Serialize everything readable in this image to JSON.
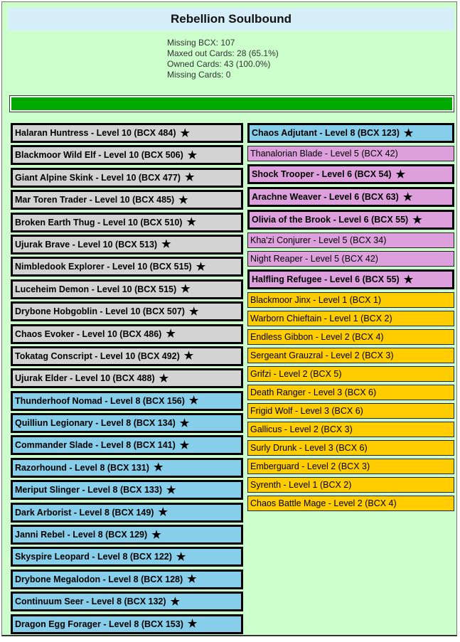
{
  "title": "Rebellion Soulbound",
  "stats": [
    "Missing BCX: 107",
    "Maxed out Cards: 28 (65.1%)",
    "Owned Cards: 43 (100.0%)",
    "Missing Cards: 0"
  ],
  "progress": {
    "fraction": 1.0,
    "color": "#00aa00"
  },
  "colors": {
    "common": "#d3d3d3",
    "rare": "#87ceeb",
    "epic": "#dda0dd",
    "legendary": "#ffcc00",
    "panel": "#ccffcc"
  },
  "left_cards": [
    {
      "label": "Halaran Huntress - Level 10 (BCX 484)",
      "rarity": "common",
      "maxed": true
    },
    {
      "label": "Blackmoor Wild Elf - Level 10 (BCX 506)",
      "rarity": "common",
      "maxed": true
    },
    {
      "label": "Giant Alpine Skink - Level 10 (BCX 477)",
      "rarity": "common",
      "maxed": true
    },
    {
      "label": "Mar Toren Trader - Level 10 (BCX 485)",
      "rarity": "common",
      "maxed": true
    },
    {
      "label": "Broken Earth Thug - Level 10 (BCX 510)",
      "rarity": "common",
      "maxed": true
    },
    {
      "label": "Ujurak Brave - Level 10 (BCX 513)",
      "rarity": "common",
      "maxed": true
    },
    {
      "label": "Nimbledook Explorer - Level 10 (BCX 515)",
      "rarity": "common",
      "maxed": true
    },
    {
      "label": "Luceheim Demon - Level 10 (BCX 515)",
      "rarity": "common",
      "maxed": true
    },
    {
      "label": "Drybone Hobgoblin - Level 10 (BCX 507)",
      "rarity": "common",
      "maxed": true
    },
    {
      "label": "Chaos Evoker - Level 10 (BCX 486)",
      "rarity": "common",
      "maxed": true
    },
    {
      "label": "Tokatag Conscript - Level 10 (BCX 492)",
      "rarity": "common",
      "maxed": true
    },
    {
      "label": "Ujurak Elder - Level 10 (BCX 488)",
      "rarity": "common",
      "maxed": true
    },
    {
      "label": "Thunderhoof Nomad - Level 8 (BCX 156)",
      "rarity": "rare",
      "maxed": true
    },
    {
      "label": "Quilliun Legionary - Level 8 (BCX 134)",
      "rarity": "rare",
      "maxed": true
    },
    {
      "label": "Commander Slade - Level 8 (BCX 141)",
      "rarity": "rare",
      "maxed": true
    },
    {
      "label": "Razorhound - Level 8 (BCX 131)",
      "rarity": "rare",
      "maxed": true
    },
    {
      "label": "Meriput Slinger - Level 8 (BCX 133)",
      "rarity": "rare",
      "maxed": true
    },
    {
      "label": "Dark Arborist - Level 8 (BCX 149)",
      "rarity": "rare",
      "maxed": true
    },
    {
      "label": "Janni Rebel - Level 8 (BCX 129)",
      "rarity": "rare",
      "maxed": true
    },
    {
      "label": "Skyspire Leopard - Level 8 (BCX 122)",
      "rarity": "rare",
      "maxed": true
    },
    {
      "label": "Drybone Megalodon - Level 8 (BCX 128)",
      "rarity": "rare",
      "maxed": true
    },
    {
      "label": "Continuum Seer - Level 8 (BCX 132)",
      "rarity": "rare",
      "maxed": true
    },
    {
      "label": "Dragon Egg Forager - Level 8 (BCX 153)",
      "rarity": "rare",
      "maxed": true
    }
  ],
  "right_cards": [
    {
      "label": "Chaos Adjutant - Level 8 (BCX 123)",
      "rarity": "rare",
      "maxed": true
    },
    {
      "label": "Thanalorian Blade - Level 5 (BCX 42)",
      "rarity": "epic",
      "maxed": false
    },
    {
      "label": "Shock Trooper - Level 6 (BCX 54)",
      "rarity": "epic",
      "maxed": true
    },
    {
      "label": "Arachne Weaver - Level 6 (BCX 63)",
      "rarity": "epic",
      "maxed": true
    },
    {
      "label": "Olivia of the Brook - Level 6 (BCX 55)",
      "rarity": "epic",
      "maxed": true
    },
    {
      "label": "Kha'zi Conjurer - Level 5 (BCX 34)",
      "rarity": "epic",
      "maxed": false
    },
    {
      "label": "Night Reaper - Level 5 (BCX 42)",
      "rarity": "epic",
      "maxed": false
    },
    {
      "label": "Halfling Refugee - Level 6 (BCX 55)",
      "rarity": "epic",
      "maxed": true
    },
    {
      "label": "Blackmoor Jinx - Level 1 (BCX 1)",
      "rarity": "legendary",
      "maxed": false
    },
    {
      "label": "Warborn Chieftain - Level 1 (BCX 2)",
      "rarity": "legendary",
      "maxed": false
    },
    {
      "label": "Endless Gibbon - Level 2 (BCX 4)",
      "rarity": "legendary",
      "maxed": false
    },
    {
      "label": "Sergeant Grauzral - Level 2 (BCX 3)",
      "rarity": "legendary",
      "maxed": false
    },
    {
      "label": "Grifzi - Level 2 (BCX 5)",
      "rarity": "legendary",
      "maxed": false
    },
    {
      "label": "Death Ranger - Level 3 (BCX 6)",
      "rarity": "legendary",
      "maxed": false
    },
    {
      "label": "Frigid Wolf - Level 3 (BCX 6)",
      "rarity": "legendary",
      "maxed": false
    },
    {
      "label": "Gallicus - Level 2 (BCX 3)",
      "rarity": "legendary",
      "maxed": false
    },
    {
      "label": "Surly Drunk - Level 3 (BCX 6)",
      "rarity": "legendary",
      "maxed": false
    },
    {
      "label": "Emberguard - Level 2 (BCX 3)",
      "rarity": "legendary",
      "maxed": false
    },
    {
      "label": "Syrenth - Level 1 (BCX 2)",
      "rarity": "legendary",
      "maxed": false
    },
    {
      "label": "Chaos Battle Mage - Level 2 (BCX 4)",
      "rarity": "legendary",
      "maxed": false
    }
  ],
  "star_icon": "star-icon",
  "star_glyph": "★"
}
